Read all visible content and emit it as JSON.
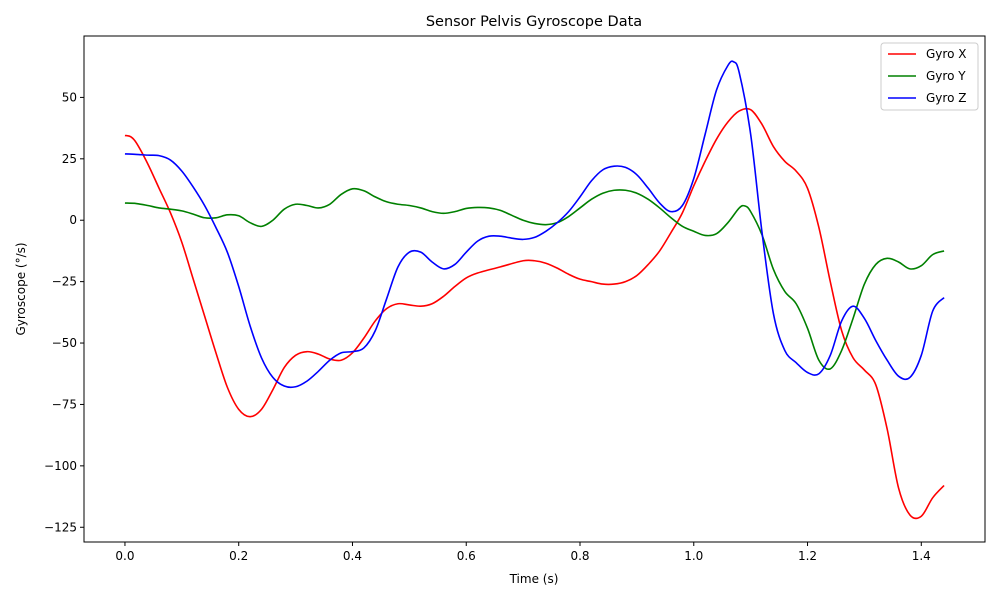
{
  "chart_data": {
    "type": "line",
    "title": "Sensor Pelvis Gyroscope Data",
    "xlabel": "Time (s)",
    "ylabel": "Gyroscope (°/s)",
    "xlim": [
      -0.072,
      1.512
    ],
    "ylim": [
      -131,
      75
    ],
    "xticks": [
      0.0,
      0.2,
      0.4,
      0.6,
      0.8,
      1.0,
      1.2,
      1.4
    ],
    "xtick_labels": [
      "0.0",
      "0.2",
      "0.4",
      "0.6",
      "0.8",
      "1.0",
      "1.2",
      "1.4"
    ],
    "yticks": [
      50,
      25,
      0,
      -25,
      -50,
      -75,
      -100,
      -125
    ],
    "ytick_labels": [
      "50",
      "25",
      "0",
      "−25",
      "−50",
      "−75",
      "−100",
      "−125"
    ],
    "legend_position": "top-right",
    "grid": false,
    "series": [
      {
        "name": "Gyro X",
        "color": "#ff0000",
        "points": [
          [
            0.0,
            34.5
          ],
          [
            0.01,
            34.0
          ],
          [
            0.02,
            31.5
          ],
          [
            0.04,
            23
          ],
          [
            0.06,
            13
          ],
          [
            0.08,
            3
          ],
          [
            0.1,
            -9
          ],
          [
            0.12,
            -24
          ],
          [
            0.14,
            -39
          ],
          [
            0.16,
            -54
          ],
          [
            0.18,
            -68
          ],
          [
            0.2,
            -77
          ],
          [
            0.22,
            -80
          ],
          [
            0.24,
            -77
          ],
          [
            0.26,
            -69
          ],
          [
            0.28,
            -60
          ],
          [
            0.3,
            -55
          ],
          [
            0.32,
            -53.5
          ],
          [
            0.34,
            -54.5
          ],
          [
            0.36,
            -56.5
          ],
          [
            0.38,
            -57
          ],
          [
            0.4,
            -54
          ],
          [
            0.42,
            -48
          ],
          [
            0.44,
            -41
          ],
          [
            0.46,
            -36
          ],
          [
            0.48,
            -34
          ],
          [
            0.5,
            -34.5
          ],
          [
            0.52,
            -35
          ],
          [
            0.54,
            -34
          ],
          [
            0.56,
            -31
          ],
          [
            0.58,
            -27
          ],
          [
            0.6,
            -23.5
          ],
          [
            0.62,
            -21.5
          ],
          [
            0.66,
            -19
          ],
          [
            0.7,
            -16.5
          ],
          [
            0.72,
            -16.5
          ],
          [
            0.74,
            -17.5
          ],
          [
            0.76,
            -19.5
          ],
          [
            0.78,
            -22
          ],
          [
            0.8,
            -24
          ],
          [
            0.82,
            -25
          ],
          [
            0.84,
            -26
          ],
          [
            0.86,
            -26
          ],
          [
            0.88,
            -25
          ],
          [
            0.9,
            -22.5
          ],
          [
            0.92,
            -18
          ],
          [
            0.94,
            -12.5
          ],
          [
            0.96,
            -5
          ],
          [
            0.98,
            3
          ],
          [
            1.0,
            14
          ],
          [
            1.02,
            24
          ],
          [
            1.04,
            33
          ],
          [
            1.06,
            40
          ],
          [
            1.08,
            44.5
          ],
          [
            1.1,
            45
          ],
          [
            1.12,
            39
          ],
          [
            1.14,
            30
          ],
          [
            1.16,
            24
          ],
          [
            1.18,
            20
          ],
          [
            1.2,
            13
          ],
          [
            1.22,
            -3
          ],
          [
            1.24,
            -25
          ],
          [
            1.26,
            -45
          ],
          [
            1.28,
            -56
          ],
          [
            1.3,
            -61
          ],
          [
            1.32,
            -67
          ],
          [
            1.34,
            -85
          ],
          [
            1.36,
            -109
          ],
          [
            1.38,
            -120
          ],
          [
            1.4,
            -120.5
          ],
          [
            1.42,
            -113
          ],
          [
            1.44,
            -108
          ]
        ]
      },
      {
        "name": "Gyro Y",
        "color": "#008000",
        "points": [
          [
            0.0,
            7
          ],
          [
            0.02,
            6.8
          ],
          [
            0.04,
            6
          ],
          [
            0.06,
            5
          ],
          [
            0.08,
            4.5
          ],
          [
            0.1,
            3.8
          ],
          [
            0.12,
            2.5
          ],
          [
            0.14,
            1
          ],
          [
            0.16,
            1
          ],
          [
            0.18,
            2.2
          ],
          [
            0.2,
            1.8
          ],
          [
            0.22,
            -1
          ],
          [
            0.24,
            -2.5
          ],
          [
            0.26,
            0
          ],
          [
            0.28,
            4.5
          ],
          [
            0.3,
            6.5
          ],
          [
            0.32,
            6
          ],
          [
            0.34,
            5
          ],
          [
            0.36,
            6.5
          ],
          [
            0.38,
            10.5
          ],
          [
            0.4,
            12.8
          ],
          [
            0.42,
            12
          ],
          [
            0.44,
            9.5
          ],
          [
            0.46,
            7.5
          ],
          [
            0.48,
            6.5
          ],
          [
            0.5,
            6
          ],
          [
            0.52,
            5
          ],
          [
            0.54,
            3.5
          ],
          [
            0.56,
            2.8
          ],
          [
            0.58,
            3.5
          ],
          [
            0.6,
            4.8
          ],
          [
            0.62,
            5.2
          ],
          [
            0.64,
            5
          ],
          [
            0.66,
            4
          ],
          [
            0.68,
            2
          ],
          [
            0.7,
            0
          ],
          [
            0.72,
            -1.3
          ],
          [
            0.74,
            -1.8
          ],
          [
            0.76,
            -1
          ],
          [
            0.78,
            1.5
          ],
          [
            0.8,
            5
          ],
          [
            0.82,
            8.5
          ],
          [
            0.84,
            11
          ],
          [
            0.86,
            12.2
          ],
          [
            0.88,
            12.2
          ],
          [
            0.9,
            11
          ],
          [
            0.92,
            8.5
          ],
          [
            0.94,
            5
          ],
          [
            0.96,
            1
          ],
          [
            0.98,
            -2.5
          ],
          [
            1.0,
            -4.5
          ],
          [
            1.02,
            -6.2
          ],
          [
            1.04,
            -5.5
          ],
          [
            1.06,
            -1
          ],
          [
            1.08,
            5
          ],
          [
            1.09,
            5.8
          ],
          [
            1.1,
            3.5
          ],
          [
            1.12,
            -6
          ],
          [
            1.14,
            -20
          ],
          [
            1.16,
            -29
          ],
          [
            1.18,
            -34
          ],
          [
            1.2,
            -44
          ],
          [
            1.22,
            -57
          ],
          [
            1.24,
            -60.5
          ],
          [
            1.26,
            -53
          ],
          [
            1.28,
            -40
          ],
          [
            1.3,
            -26
          ],
          [
            1.32,
            -18
          ],
          [
            1.34,
            -15.5
          ],
          [
            1.36,
            -17
          ],
          [
            1.38,
            -19.8
          ],
          [
            1.4,
            -18.5
          ],
          [
            1.42,
            -14
          ],
          [
            1.44,
            -12.5
          ]
        ]
      },
      {
        "name": "Gyro Z",
        "color": "#0000ff",
        "points": [
          [
            0.0,
            27
          ],
          [
            0.02,
            26.8
          ],
          [
            0.04,
            26.5
          ],
          [
            0.06,
            26.3
          ],
          [
            0.08,
            24.5
          ],
          [
            0.1,
            20
          ],
          [
            0.12,
            13.5
          ],
          [
            0.14,
            6
          ],
          [
            0.16,
            -3
          ],
          [
            0.18,
            -13
          ],
          [
            0.2,
            -27
          ],
          [
            0.22,
            -43
          ],
          [
            0.24,
            -56
          ],
          [
            0.26,
            -64
          ],
          [
            0.28,
            -67.5
          ],
          [
            0.3,
            -67.8
          ],
          [
            0.32,
            -65.5
          ],
          [
            0.34,
            -61.5
          ],
          [
            0.36,
            -57
          ],
          [
            0.38,
            -54
          ],
          [
            0.4,
            -53.5
          ],
          [
            0.42,
            -52
          ],
          [
            0.44,
            -45
          ],
          [
            0.46,
            -32
          ],
          [
            0.48,
            -19
          ],
          [
            0.5,
            -13
          ],
          [
            0.52,
            -13
          ],
          [
            0.54,
            -17
          ],
          [
            0.56,
            -19.8
          ],
          [
            0.58,
            -18
          ],
          [
            0.6,
            -13
          ],
          [
            0.62,
            -8.5
          ],
          [
            0.64,
            -6.5
          ],
          [
            0.66,
            -6.5
          ],
          [
            0.68,
            -7.3
          ],
          [
            0.7,
            -7.8
          ],
          [
            0.72,
            -7
          ],
          [
            0.74,
            -4.5
          ],
          [
            0.76,
            -1
          ],
          [
            0.78,
            3.5
          ],
          [
            0.8,
            9.5
          ],
          [
            0.82,
            16
          ],
          [
            0.84,
            20.5
          ],
          [
            0.86,
            22
          ],
          [
            0.88,
            21.5
          ],
          [
            0.9,
            18.5
          ],
          [
            0.92,
            13
          ],
          [
            0.94,
            7
          ],
          [
            0.96,
            3.5
          ],
          [
            0.98,
            6
          ],
          [
            1.0,
            17
          ],
          [
            1.02,
            35
          ],
          [
            1.04,
            53
          ],
          [
            1.06,
            63
          ],
          [
            1.07,
            64.5
          ],
          [
            1.08,
            60
          ],
          [
            1.1,
            35
          ],
          [
            1.12,
            -5
          ],
          [
            1.14,
            -38
          ],
          [
            1.16,
            -53
          ],
          [
            1.18,
            -58
          ],
          [
            1.2,
            -62
          ],
          [
            1.22,
            -62.5
          ],
          [
            1.24,
            -55
          ],
          [
            1.26,
            -41
          ],
          [
            1.28,
            -35
          ],
          [
            1.3,
            -40
          ],
          [
            1.32,
            -49
          ],
          [
            1.34,
            -57
          ],
          [
            1.36,
            -63.5
          ],
          [
            1.38,
            -64
          ],
          [
            1.4,
            -55
          ],
          [
            1.42,
            -37
          ],
          [
            1.44,
            -31.5
          ]
        ]
      }
    ]
  }
}
